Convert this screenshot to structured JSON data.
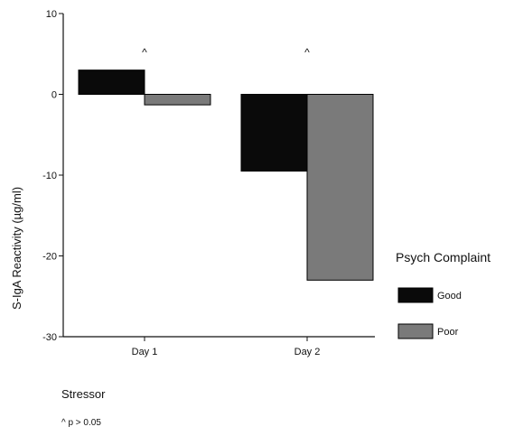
{
  "chart_data": {
    "type": "bar",
    "categories": [
      "Day 1",
      "Day 2"
    ],
    "series": [
      {
        "name": "Good",
        "values": [
          3,
          -9.5
        ],
        "color": "#0a0a0a"
      },
      {
        "name": "Poor",
        "values": [
          -1.3,
          -23
        ],
        "color": "#7a7a7a"
      }
    ],
    "ylabel": "S-IgA Reactivity (µg/ml)",
    "xlabel": "Stressor",
    "ylim": [
      -30,
      10
    ],
    "yticks": [
      10,
      0,
      -10,
      -20,
      -30
    ],
    "legend": {
      "title": "Psych Complaint",
      "position": "right"
    },
    "annotations": [
      "^",
      "^"
    ],
    "footnote": "^ p > 0.05",
    "grid": false
  }
}
